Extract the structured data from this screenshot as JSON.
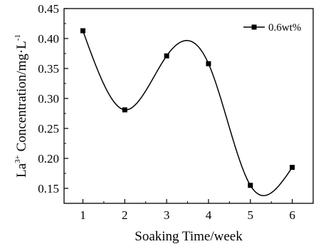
{
  "chart_data": {
    "type": "line",
    "title": "",
    "xlabel": "Soaking Time/week",
    "ylabel": {
      "prefix": "La",
      "superscript": "3+",
      "middle": " Concentration/mg·L",
      "unit_superscript": "-1"
    },
    "x": [
      1,
      2,
      3,
      4,
      5,
      6
    ],
    "xlim": [
      0.55,
      6.5
    ],
    "ylim": [
      0.125,
      0.45
    ],
    "x_ticks": [
      "1",
      "2",
      "3",
      "4",
      "5",
      "6"
    ],
    "y_ticks": [
      0.15,
      0.2,
      0.25,
      0.3,
      0.35,
      0.4,
      0.45
    ],
    "y_tick_labels": [
      "0.15",
      "0.20",
      "0.25",
      "0.30",
      "0.35",
      "0.40",
      "0.45"
    ],
    "grid": false,
    "legend_position": "top-right",
    "series": [
      {
        "name": "0.6wt%",
        "values": [
          0.413,
          0.281,
          0.371,
          0.358,
          0.155,
          0.185
        ],
        "color": "#000000",
        "marker": "square",
        "smooth": true
      }
    ]
  }
}
